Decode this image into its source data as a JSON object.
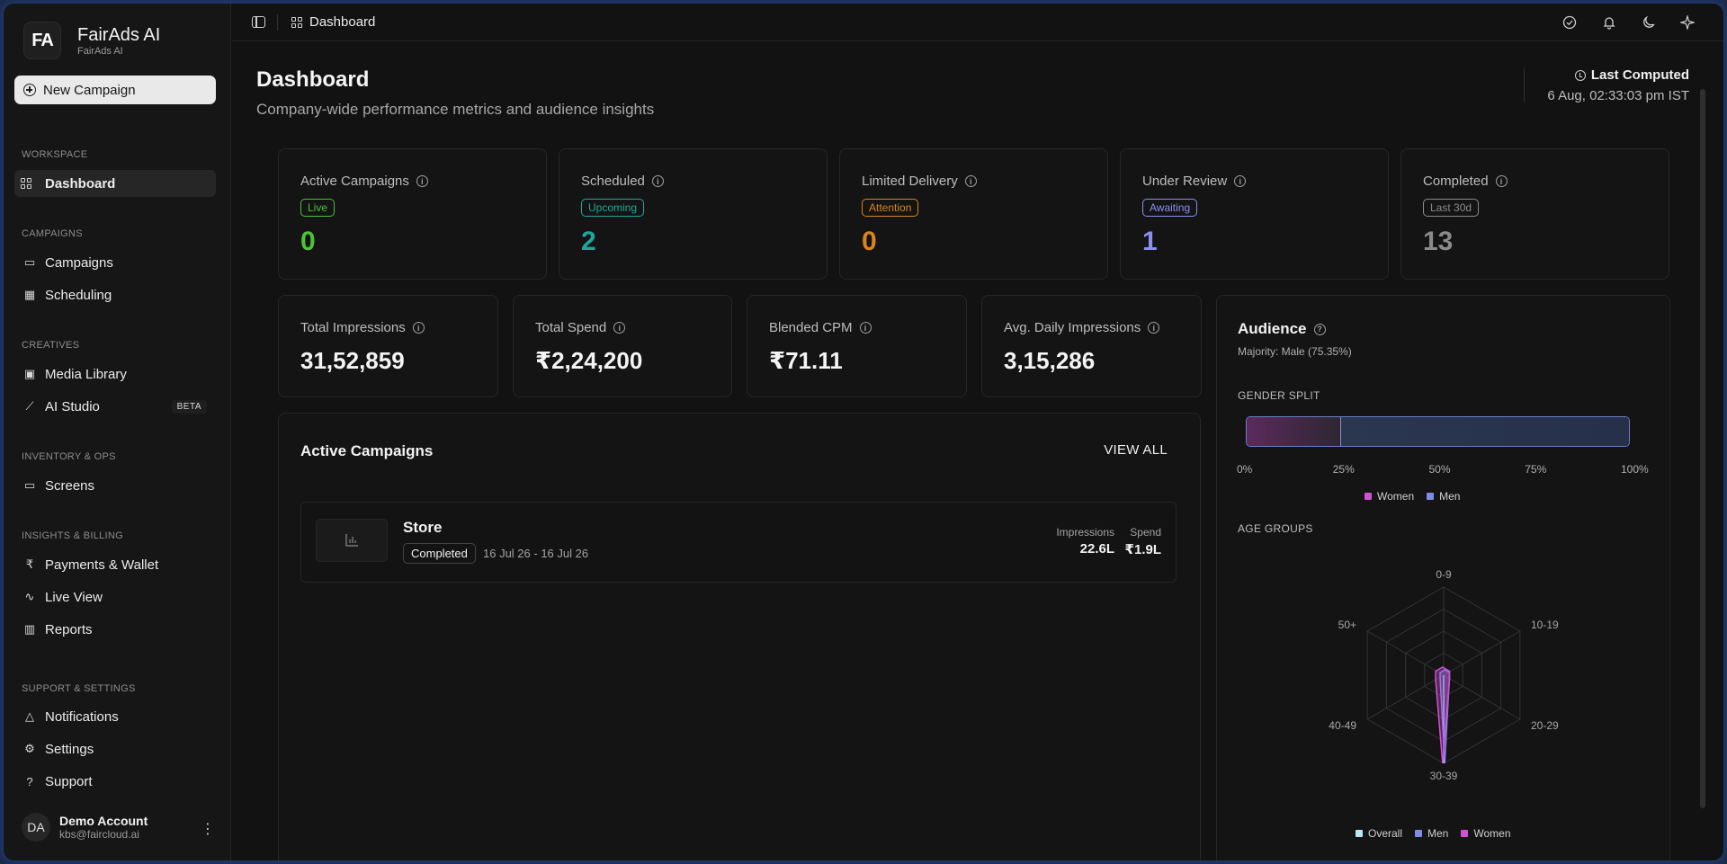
{
  "app": {
    "logo": "FA",
    "name": "FairAds AI",
    "subtitle": "FairAds AI"
  },
  "sidebar": {
    "new_campaign": "New Campaign",
    "sections": [
      {
        "label": "WORKSPACE",
        "items": [
          {
            "label": "Dashboard",
            "icon": "grid-icon",
            "active": true
          }
        ]
      },
      {
        "label": "CAMPAIGNS",
        "items": [
          {
            "label": "Campaigns",
            "icon": "folder-icon"
          },
          {
            "label": "Scheduling",
            "icon": "calendar-icon"
          }
        ]
      },
      {
        "label": "CREATIVES",
        "items": [
          {
            "label": "Media Library",
            "icon": "image-icon"
          },
          {
            "label": "AI Studio",
            "icon": "wand-icon",
            "badge": "BETA"
          }
        ]
      },
      {
        "label": "INVENTORY & OPS",
        "items": [
          {
            "label": "Screens",
            "icon": "monitor-icon"
          }
        ]
      },
      {
        "label": "INSIGHTS & BILLING",
        "items": [
          {
            "label": "Payments & Wallet",
            "icon": "rupee-icon"
          },
          {
            "label": "Live View",
            "icon": "activity-icon"
          },
          {
            "label": "Reports",
            "icon": "bar-chart-icon"
          }
        ]
      },
      {
        "label": "SUPPORT & SETTINGS",
        "items": [
          {
            "label": "Notifications",
            "icon": "bell-icon"
          },
          {
            "label": "Settings",
            "icon": "gear-icon"
          },
          {
            "label": "Support",
            "icon": "help-icon"
          }
        ]
      }
    ],
    "account": {
      "initials": "DA",
      "name": "Demo Account",
      "email": "kbs@faircloud.ai"
    }
  },
  "topbar": {
    "breadcrumb": "Dashboard"
  },
  "header": {
    "title": "Dashboard",
    "subtitle": "Company-wide performance metrics and audience insights",
    "last_computed_label": "Last Computed",
    "last_computed_time": "6 Aug, 02:33:03 pm IST"
  },
  "stats": [
    {
      "title": "Active Campaigns",
      "badge": "Live",
      "value": "0",
      "color": "#4cc238"
    },
    {
      "title": "Scheduled",
      "badge": "Upcoming",
      "value": "2",
      "color": "#1ea89a"
    },
    {
      "title": "Limited Delivery",
      "badge": "Attention",
      "value": "0",
      "color": "#d9851c"
    },
    {
      "title": "Under Review",
      "badge": "Awaiting",
      "value": "1",
      "color": "#8a8ff0"
    },
    {
      "title": "Completed",
      "badge": "Last 30d",
      "value": "13",
      "color": "#8a8a8a"
    }
  ],
  "metrics": [
    {
      "title": "Total Impressions",
      "value": "31,52,859"
    },
    {
      "title": "Total Spend",
      "value": "₹2,24,200"
    },
    {
      "title": "Blended CPM",
      "value": "₹71.11"
    },
    {
      "title": "Avg. Daily Impressions",
      "value": "3,15,286"
    }
  ],
  "active_campaigns": {
    "title": "Active Campaigns",
    "view_all": "VIEW ALL",
    "rows": [
      {
        "name": "Store",
        "status": "Completed",
        "dates": "16 Jul 26 - 16 Jul 26",
        "impressions_label": "Impressions",
        "impressions": "22.6L",
        "spend_label": "Spend",
        "spend": "₹1.9L"
      }
    ]
  },
  "audience": {
    "title": "Audience",
    "majority": "Majority: Male (75.35%)",
    "gender_label": "GENDER SPLIT",
    "gender_ticks": [
      "0%",
      "25%",
      "50%",
      "75%",
      "100%"
    ],
    "gender_legend": [
      {
        "label": "Women",
        "color": "#d050d6"
      },
      {
        "label": "Men",
        "color": "#7f8be8"
      }
    ],
    "age_label": "AGE GROUPS",
    "age_legend": [
      {
        "label": "Overall",
        "color": "#b7e8f0"
      },
      {
        "label": "Men",
        "color": "#7f8be8"
      },
      {
        "label": "Women",
        "color": "#d050d6"
      }
    ]
  },
  "chart_data": [
    {
      "type": "bar",
      "title": "GENDER SPLIT",
      "categories": [
        "Women",
        "Men"
      ],
      "values": [
        24.65,
        75.35
      ],
      "xlim": [
        0,
        100
      ],
      "orientation": "horizontal-stacked",
      "legend": "bottom"
    },
    {
      "type": "radar",
      "title": "AGE GROUPS",
      "categories": [
        "0-9",
        "10-19",
        "20-29",
        "30-39",
        "40-49",
        "50+"
      ],
      "series": [
        {
          "name": "Overall",
          "values": [
            0,
            0,
            0,
            100,
            0,
            0
          ]
        },
        {
          "name": "Men",
          "values": [
            0,
            0,
            0,
            100,
            0,
            0
          ]
        },
        {
          "name": "Women",
          "values": [
            0,
            0,
            0,
            100,
            0,
            0
          ]
        }
      ],
      "legend": "bottom"
    }
  ]
}
